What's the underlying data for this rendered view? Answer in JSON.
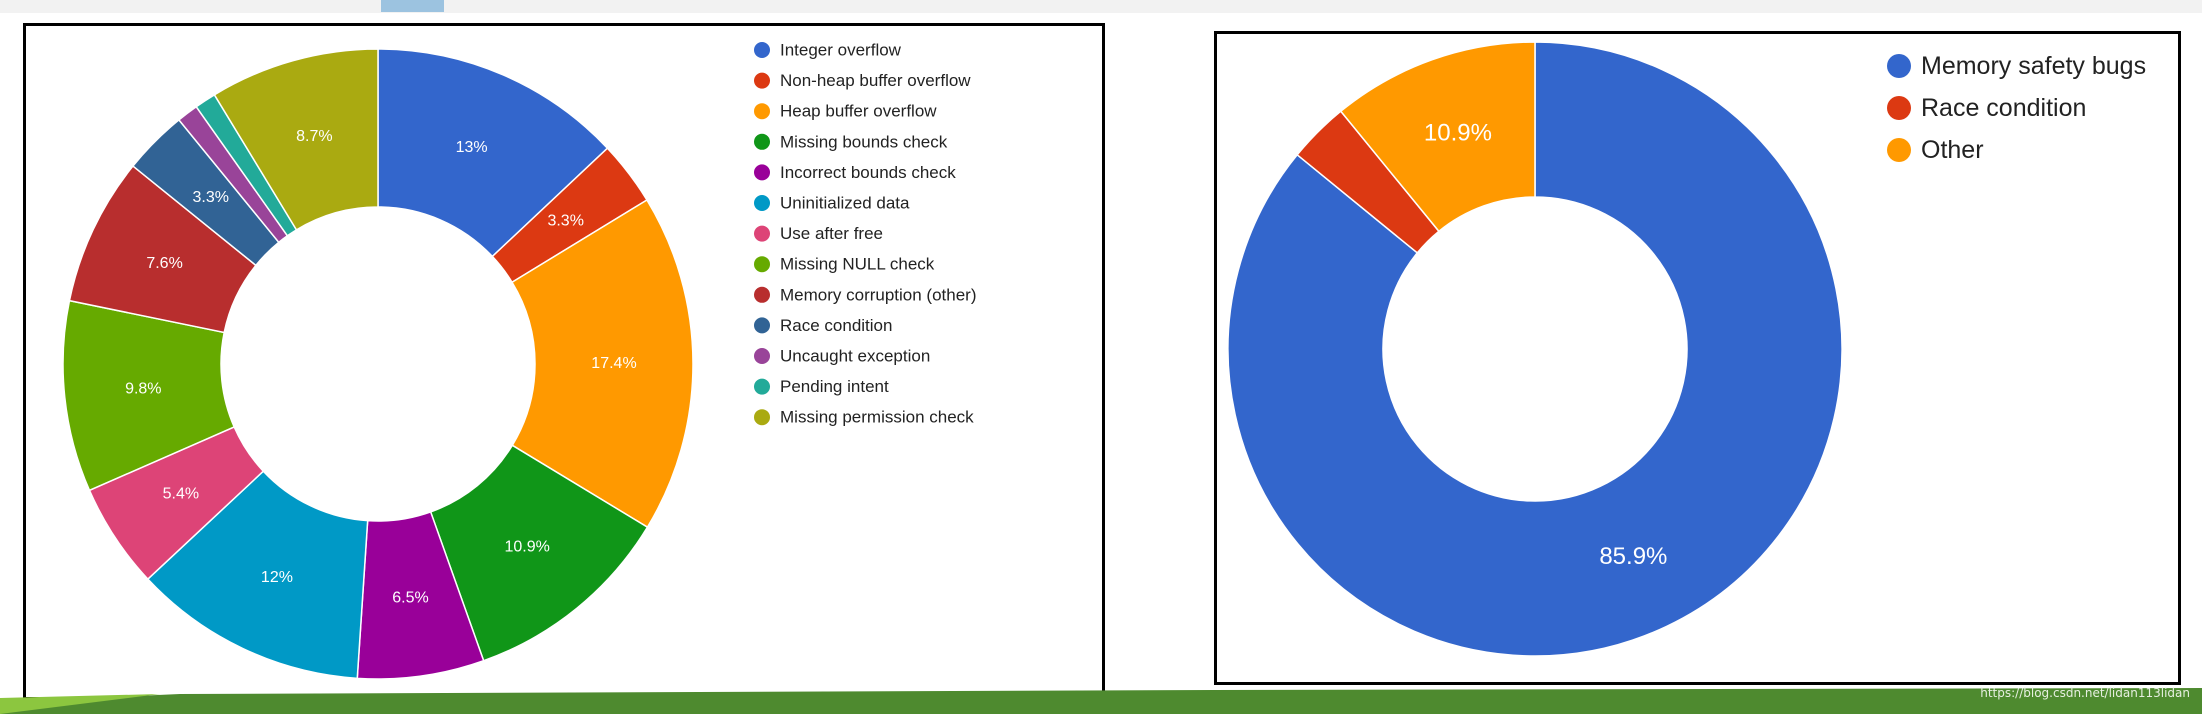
{
  "watermark": "https://blog.csdn.net/lidan113lidan",
  "chart_data": [
    {
      "type": "pie",
      "donut": true,
      "legend_position": "right",
      "categories": [
        "Integer overflow",
        "Non-heap buffer overflow",
        "Heap buffer overflow",
        "Missing bounds check",
        "Incorrect bounds check",
        "Uninitialized data",
        "Use after free",
        "Missing NULL check",
        "Memory corruption (other)",
        "Race condition",
        "Uncaught exception",
        "Pending intent",
        "Missing permission check"
      ],
      "values": [
        13,
        3.3,
        17.4,
        10.9,
        6.5,
        12,
        5.4,
        9.8,
        7.6,
        3.3,
        1.1,
        1.1,
        8.7
      ],
      "labels": [
        "13%",
        "3.3%",
        "17.4%",
        "10.9%",
        "6.5%",
        "12%",
        "5.4%",
        "9.8%",
        "7.6%",
        "3.3%",
        "",
        "",
        "8.7%"
      ],
      "colors": [
        "#3366cc",
        "#dc3912",
        "#ff9900",
        "#109618",
        "#990099",
        "#0099c6",
        "#dd4477",
        "#66aa00",
        "#b82e2e",
        "#316395",
        "#994499",
        "#22aa99",
        "#aaaa11"
      ]
    },
    {
      "type": "pie",
      "donut": true,
      "legend_position": "top-right",
      "categories": [
        "Memory safety bugs",
        "Race condition",
        "Other"
      ],
      "values": [
        85.9,
        3.2,
        10.9
      ],
      "labels": [
        "85.9%",
        "",
        "10.9%"
      ],
      "colors": [
        "#3366cc",
        "#dc3912",
        "#ff9900"
      ]
    }
  ]
}
